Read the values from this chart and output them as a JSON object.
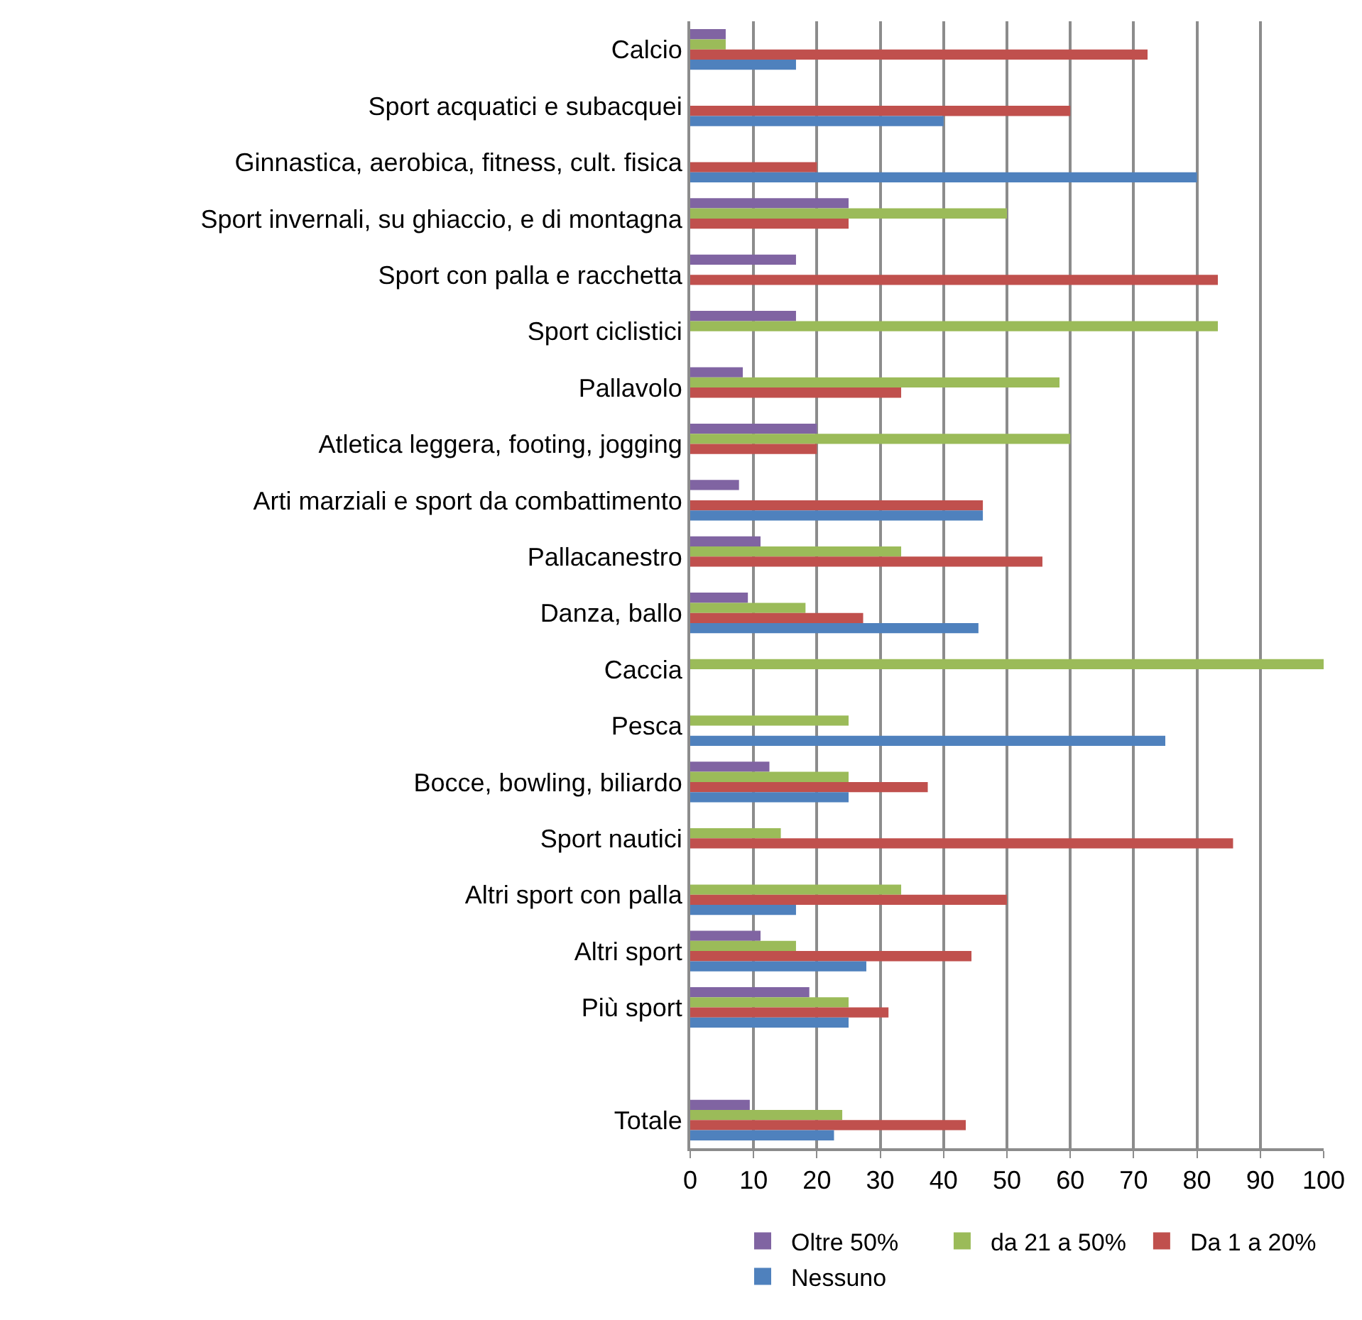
{
  "chart_data": {
    "type": "bar",
    "orientation": "horizontal",
    "categories": [
      "Calcio",
      "Sport acquatici e subacquei",
      "Ginnastica, aerobica, fitness, cult. fisica",
      "Sport invernali, su ghiaccio, e di montagna",
      "Sport con palla e racchetta",
      "Sport ciclistici",
      "Pallavolo",
      "Atletica leggera, footing, jogging",
      "Arti marziali e sport da combattimento",
      "Pallacanestro",
      "Danza, ballo",
      "Caccia",
      "Pesca",
      "Bocce, bowling, biliardo",
      "Sport nautici",
      "Altri sport con palla",
      "Altri sport",
      "Più sport",
      null,
      "Totale"
    ],
    "series": [
      {
        "name": "Oltre 50%",
        "color": "#8064a2",
        "values": [
          5.6,
          null,
          null,
          25,
          16.7,
          16.7,
          8.3,
          20,
          7.7,
          11.1,
          9.1,
          null,
          null,
          12.5,
          null,
          null,
          11.1,
          18.8,
          null,
          9.4
        ]
      },
      {
        "name": "da 21 a 50%",
        "color": "#9bbb59",
        "values": [
          5.6,
          null,
          null,
          50,
          null,
          83.3,
          58.3,
          60,
          null,
          33.3,
          18.2,
          100,
          25,
          25,
          14.3,
          33.3,
          16.7,
          25,
          null,
          24.0
        ]
      },
      {
        "name": "Da 1 a 20%",
        "color": "#c0504d",
        "values": [
          72.2,
          60,
          20,
          25,
          83.3,
          null,
          33.3,
          20,
          46.2,
          55.6,
          27.3,
          null,
          null,
          37.5,
          85.7,
          50,
          44.4,
          31.3,
          null,
          43.5
        ]
      },
      {
        "name": "Nessuno",
        "color": "#4f81bd",
        "values": [
          16.7,
          40,
          80,
          null,
          null,
          null,
          null,
          null,
          46.2,
          null,
          45.5,
          null,
          75,
          25,
          null,
          16.7,
          27.8,
          25,
          null,
          22.7
        ]
      }
    ],
    "xlim": [
      0,
      100
    ],
    "xticks": [
      0,
      10,
      20,
      30,
      40,
      50,
      60,
      70,
      80,
      90,
      100
    ],
    "grid": "x",
    "legend": "bottom"
  }
}
